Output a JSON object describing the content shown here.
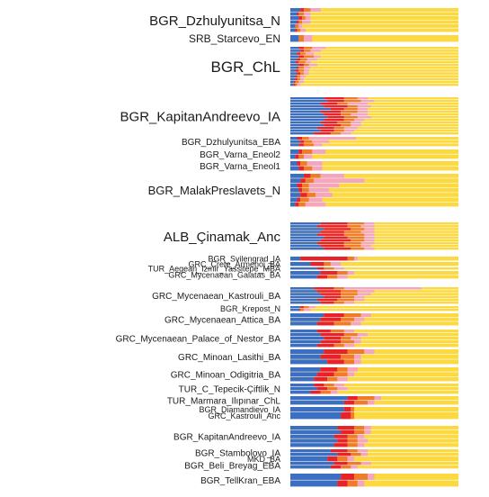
{
  "chart_data": {
    "type": "bar",
    "orientation": "horizontal-stacked",
    "grid": false,
    "legend": "none",
    "component_colors": [
      "#3b6fc4",
      "#e8212b",
      "#f07b2b",
      "#f4a6bf",
      "#fcd940"
    ],
    "groups": [
      {
        "label": "BGR_Dzhulyunitsa_N",
        "n": 6,
        "values": [
          [
            0.06,
            0.02,
            0.04,
            0.06
          ],
          [
            0.04,
            0.01,
            0.03,
            0.04
          ],
          [
            0.05,
            0.02,
            0.02,
            0.03
          ],
          [
            0.04,
            0.01,
            0.02,
            0.05
          ],
          [
            0.03,
            0.0,
            0.02,
            0.02
          ],
          [
            0.03,
            0.01,
            0.02,
            0.03
          ]
        ]
      },
      {
        "label": "SRB_Starcevo_EN",
        "n": 1,
        "values": [
          [
            0.05,
            0.0,
            0.03,
            0.05
          ]
        ]
      },
      {
        "label": "BGR_ChL",
        "n": 14,
        "values": [
          [
            0.05,
            0.03,
            0.05,
            0.08
          ],
          [
            0.06,
            0.02,
            0.04,
            0.06
          ],
          [
            0.04,
            0.02,
            0.03,
            0.05
          ],
          [
            0.05,
            0.03,
            0.06,
            0.04
          ],
          [
            0.04,
            0.02,
            0.04,
            0.06
          ],
          [
            0.03,
            0.02,
            0.04,
            0.03
          ],
          [
            0.05,
            0.03,
            0.03,
            0.05
          ],
          [
            0.04,
            0.01,
            0.03,
            0.04
          ],
          [
            0.03,
            0.02,
            0.03,
            0.03
          ],
          [
            0.04,
            0.02,
            0.02,
            0.03
          ],
          [
            0.03,
            0.01,
            0.02,
            0.03
          ],
          [
            0.03,
            0.01,
            0.02,
            0.02
          ],
          [
            0.02,
            0.01,
            0.02,
            0.03
          ],
          [
            0.02,
            0.01,
            0.01,
            0.02
          ]
        ]
      },
      {
        "label": "BGR_KapitanAndreevo_IA",
        "n": 14,
        "values": [
          [
            0.2,
            0.12,
            0.08,
            0.06
          ],
          [
            0.22,
            0.1,
            0.1,
            0.08
          ],
          [
            0.18,
            0.1,
            0.06,
            0.12
          ],
          [
            0.2,
            0.14,
            0.06,
            0.08
          ],
          [
            0.24,
            0.08,
            0.08,
            0.06
          ],
          [
            0.18,
            0.12,
            0.1,
            0.06
          ],
          [
            0.2,
            0.1,
            0.06,
            0.1
          ],
          [
            0.22,
            0.1,
            0.08,
            0.08
          ],
          [
            0.2,
            0.12,
            0.06,
            0.06
          ],
          [
            0.18,
            0.1,
            0.08,
            0.06
          ],
          [
            0.2,
            0.1,
            0.06,
            0.06
          ],
          [
            0.16,
            0.1,
            0.06,
            0.08
          ],
          [
            0.18,
            0.08,
            0.06,
            0.06
          ],
          [
            0.14,
            0.1,
            0.06,
            0.06
          ]
        ]
      },
      {
        "label": "BGR_Dzhulyunitsa_EBA",
        "n": 3,
        "values": [
          [
            0.04,
            0.03,
            0.04,
            0.28
          ],
          [
            0.06,
            0.02,
            0.05,
            0.1
          ],
          [
            0.05,
            0.03,
            0.06,
            0.05
          ]
        ]
      },
      {
        "label": "BGR_Varna_Eneol2",
        "n": 2,
        "values": [
          [
            0.05,
            0.02,
            0.06,
            0.08
          ],
          [
            0.03,
            0.02,
            0.03,
            0.05
          ]
        ]
      },
      {
        "label": "BGR_Varna_Eneol1",
        "n": 2,
        "values": [
          [
            0.04,
            0.02,
            0.04,
            0.09
          ],
          [
            0.05,
            0.03,
            0.05,
            0.06
          ]
        ]
      },
      {
        "label": "BGR_MalakPreslavets_N",
        "n": 7,
        "values": [
          [
            0.08,
            0.04,
            0.06,
            0.14
          ],
          [
            0.06,
            0.03,
            0.05,
            0.3
          ],
          [
            0.04,
            0.03,
            0.04,
            0.18
          ],
          [
            0.05,
            0.02,
            0.04,
            0.12
          ],
          [
            0.06,
            0.04,
            0.05,
            0.1
          ],
          [
            0.04,
            0.02,
            0.05,
            0.08
          ],
          [
            0.03,
            0.02,
            0.04,
            0.12
          ]
        ]
      },
      {
        "label": "ALB_Çinamak_Anc",
        "n": 10,
        "values": [
          [
            0.18,
            0.16,
            0.1,
            0.06
          ],
          [
            0.16,
            0.18,
            0.08,
            0.08
          ],
          [
            0.2,
            0.16,
            0.08,
            0.06
          ],
          [
            0.18,
            0.14,
            0.1,
            0.08
          ],
          [
            0.16,
            0.16,
            0.12,
            0.06
          ],
          [
            0.2,
            0.14,
            0.1,
            0.06
          ],
          [
            0.18,
            0.18,
            0.08,
            0.06
          ],
          [
            0.16,
            0.16,
            0.1,
            0.08
          ],
          [
            0.18,
            0.14,
            0.1,
            0.06
          ],
          [
            0.2,
            0.16,
            0.08,
            0.06
          ]
        ]
      },
      {
        "label": "BGR_Svilengrad_IA",
        "n": 1,
        "values": [
          [
            0.06,
            0.28,
            0.04,
            0.02
          ]
        ]
      },
      {
        "label": "GRC_Crete_Armenoi_BA",
        "n": 1,
        "values": [
          [
            0.12,
            0.08,
            0.04,
            0.06
          ]
        ]
      },
      {
        "label": "TUR_Aegean_Izmir_Yassitepe_MBA",
        "n": 1,
        "values": [
          [
            0.16,
            0.04,
            0.06,
            0.06
          ]
        ]
      },
      {
        "label": "GRC_Mycenaean_Galatas_BA",
        "n": 2,
        "values": [
          [
            0.18,
            0.1,
            0.06,
            0.04
          ],
          [
            0.16,
            0.06,
            0.06,
            0.06
          ]
        ]
      },
      {
        "label": "GRC_Mycenaean_Kastrouli_BA",
        "n": 6,
        "values": [
          [
            0.14,
            0.12,
            0.06,
            0.46
          ],
          [
            0.16,
            0.14,
            0.1,
            0.1
          ],
          [
            0.18,
            0.12,
            0.1,
            0.08
          ],
          [
            0.2,
            0.1,
            0.08,
            0.06
          ],
          [
            0.16,
            0.12,
            0.1,
            0.06
          ],
          [
            0.18,
            0.08,
            0.06,
            0.06
          ]
        ]
      },
      {
        "label": "BGR_Krepost_N",
        "n": 2,
        "values": [
          [
            0.06,
            0.02,
            0.03,
            0.04
          ],
          [
            0.05,
            0.01,
            0.02,
            0.04
          ]
        ]
      },
      {
        "label": "GRC_Mycenaean_Attica_BA",
        "n": 3,
        "values": [
          [
            0.2,
            0.12,
            0.1,
            0.06
          ],
          [
            0.18,
            0.12,
            0.08,
            0.06
          ],
          [
            0.16,
            0.1,
            0.1,
            0.06
          ]
        ]
      },
      {
        "label": "GRC_Mycenaean_Palace_of_Nestor_BA",
        "n": 5,
        "values": [
          [
            0.16,
            0.08,
            0.08,
            0.06
          ],
          [
            0.18,
            0.14,
            0.08,
            0.06
          ],
          [
            0.2,
            0.1,
            0.06,
            0.06
          ],
          [
            0.18,
            0.12,
            0.08,
            0.04
          ],
          [
            0.16,
            0.1,
            0.06,
            0.06
          ]
        ]
      },
      {
        "label": "GRC_Minoan_Lasithi_BA",
        "n": 3,
        "values": [
          [
            0.2,
            0.14,
            0.1,
            0.06
          ],
          [
            0.18,
            0.12,
            0.08,
            0.04
          ],
          [
            0.22,
            0.1,
            0.06,
            0.04
          ]
        ]
      },
      {
        "label": "GRC_Minoan_Odigitria_BA",
        "n": 3,
        "values": [
          [
            0.18,
            0.1,
            0.06,
            0.06
          ],
          [
            0.16,
            0.1,
            0.08,
            0.04
          ],
          [
            0.14,
            0.08,
            0.06,
            0.06
          ]
        ]
      },
      {
        "label": "TUR_C_Tepecik-Çiftlik_N",
        "n": 3,
        "values": [
          [
            0.14,
            0.06,
            0.06,
            0.06
          ],
          [
            0.16,
            0.06,
            0.06,
            0.06
          ],
          [
            0.12,
            0.06,
            0.06,
            0.04
          ]
        ]
      },
      {
        "label": "TUR_Marmara_Ilıpınar_ChL",
        "n": 2,
        "values": [
          [
            0.34,
            0.06,
            0.1,
            0.04
          ],
          [
            0.32,
            0.06,
            0.08,
            0.04
          ]
        ]
      },
      {
        "label": "BGR_Diamandievo_IA",
        "n": 1,
        "values": [
          [
            0.32,
            0.04,
            0.02,
            0.0
          ]
        ]
      },
      {
        "label": "GRC_Kastrouli_Anc",
        "n": 1,
        "values": [
          [
            0.3,
            0.06,
            0.02,
            0.0
          ]
        ]
      },
      {
        "label": "BGR_KapitanAndreevo_IA",
        "n": 5,
        "values": [
          [
            0.28,
            0.1,
            0.06,
            0.04
          ],
          [
            0.3,
            0.08,
            0.06,
            0.04
          ],
          [
            0.26,
            0.08,
            0.06,
            0.04
          ],
          [
            0.28,
            0.06,
            0.06,
            0.06
          ],
          [
            0.26,
            0.08,
            0.06,
            0.04
          ]
        ]
      },
      {
        "label": "BGR_Stambolovo_IA",
        "n": 2,
        "values": [
          [
            0.24,
            0.1,
            0.06,
            0.06
          ],
          [
            0.28,
            0.08,
            0.06,
            0.04
          ]
        ]
      },
      {
        "label": "MKD_BA",
        "n": 1,
        "values": [
          [
            0.22,
            0.06,
            0.06,
            0.04
          ]
        ]
      },
      {
        "label": "BGR_Beli_Breyag_EBA",
        "n": 2,
        "values": [
          [
            0.26,
            0.08,
            0.08,
            0.06
          ],
          [
            0.24,
            0.06,
            0.06,
            0.04
          ]
        ]
      },
      {
        "label": "BGR_TellKran_EBA",
        "n": 2,
        "values": [
          [
            0.3,
            0.08,
            0.08,
            0.04
          ],
          [
            0.28,
            0.06,
            0.06,
            0.04
          ]
        ]
      }
    ]
  }
}
